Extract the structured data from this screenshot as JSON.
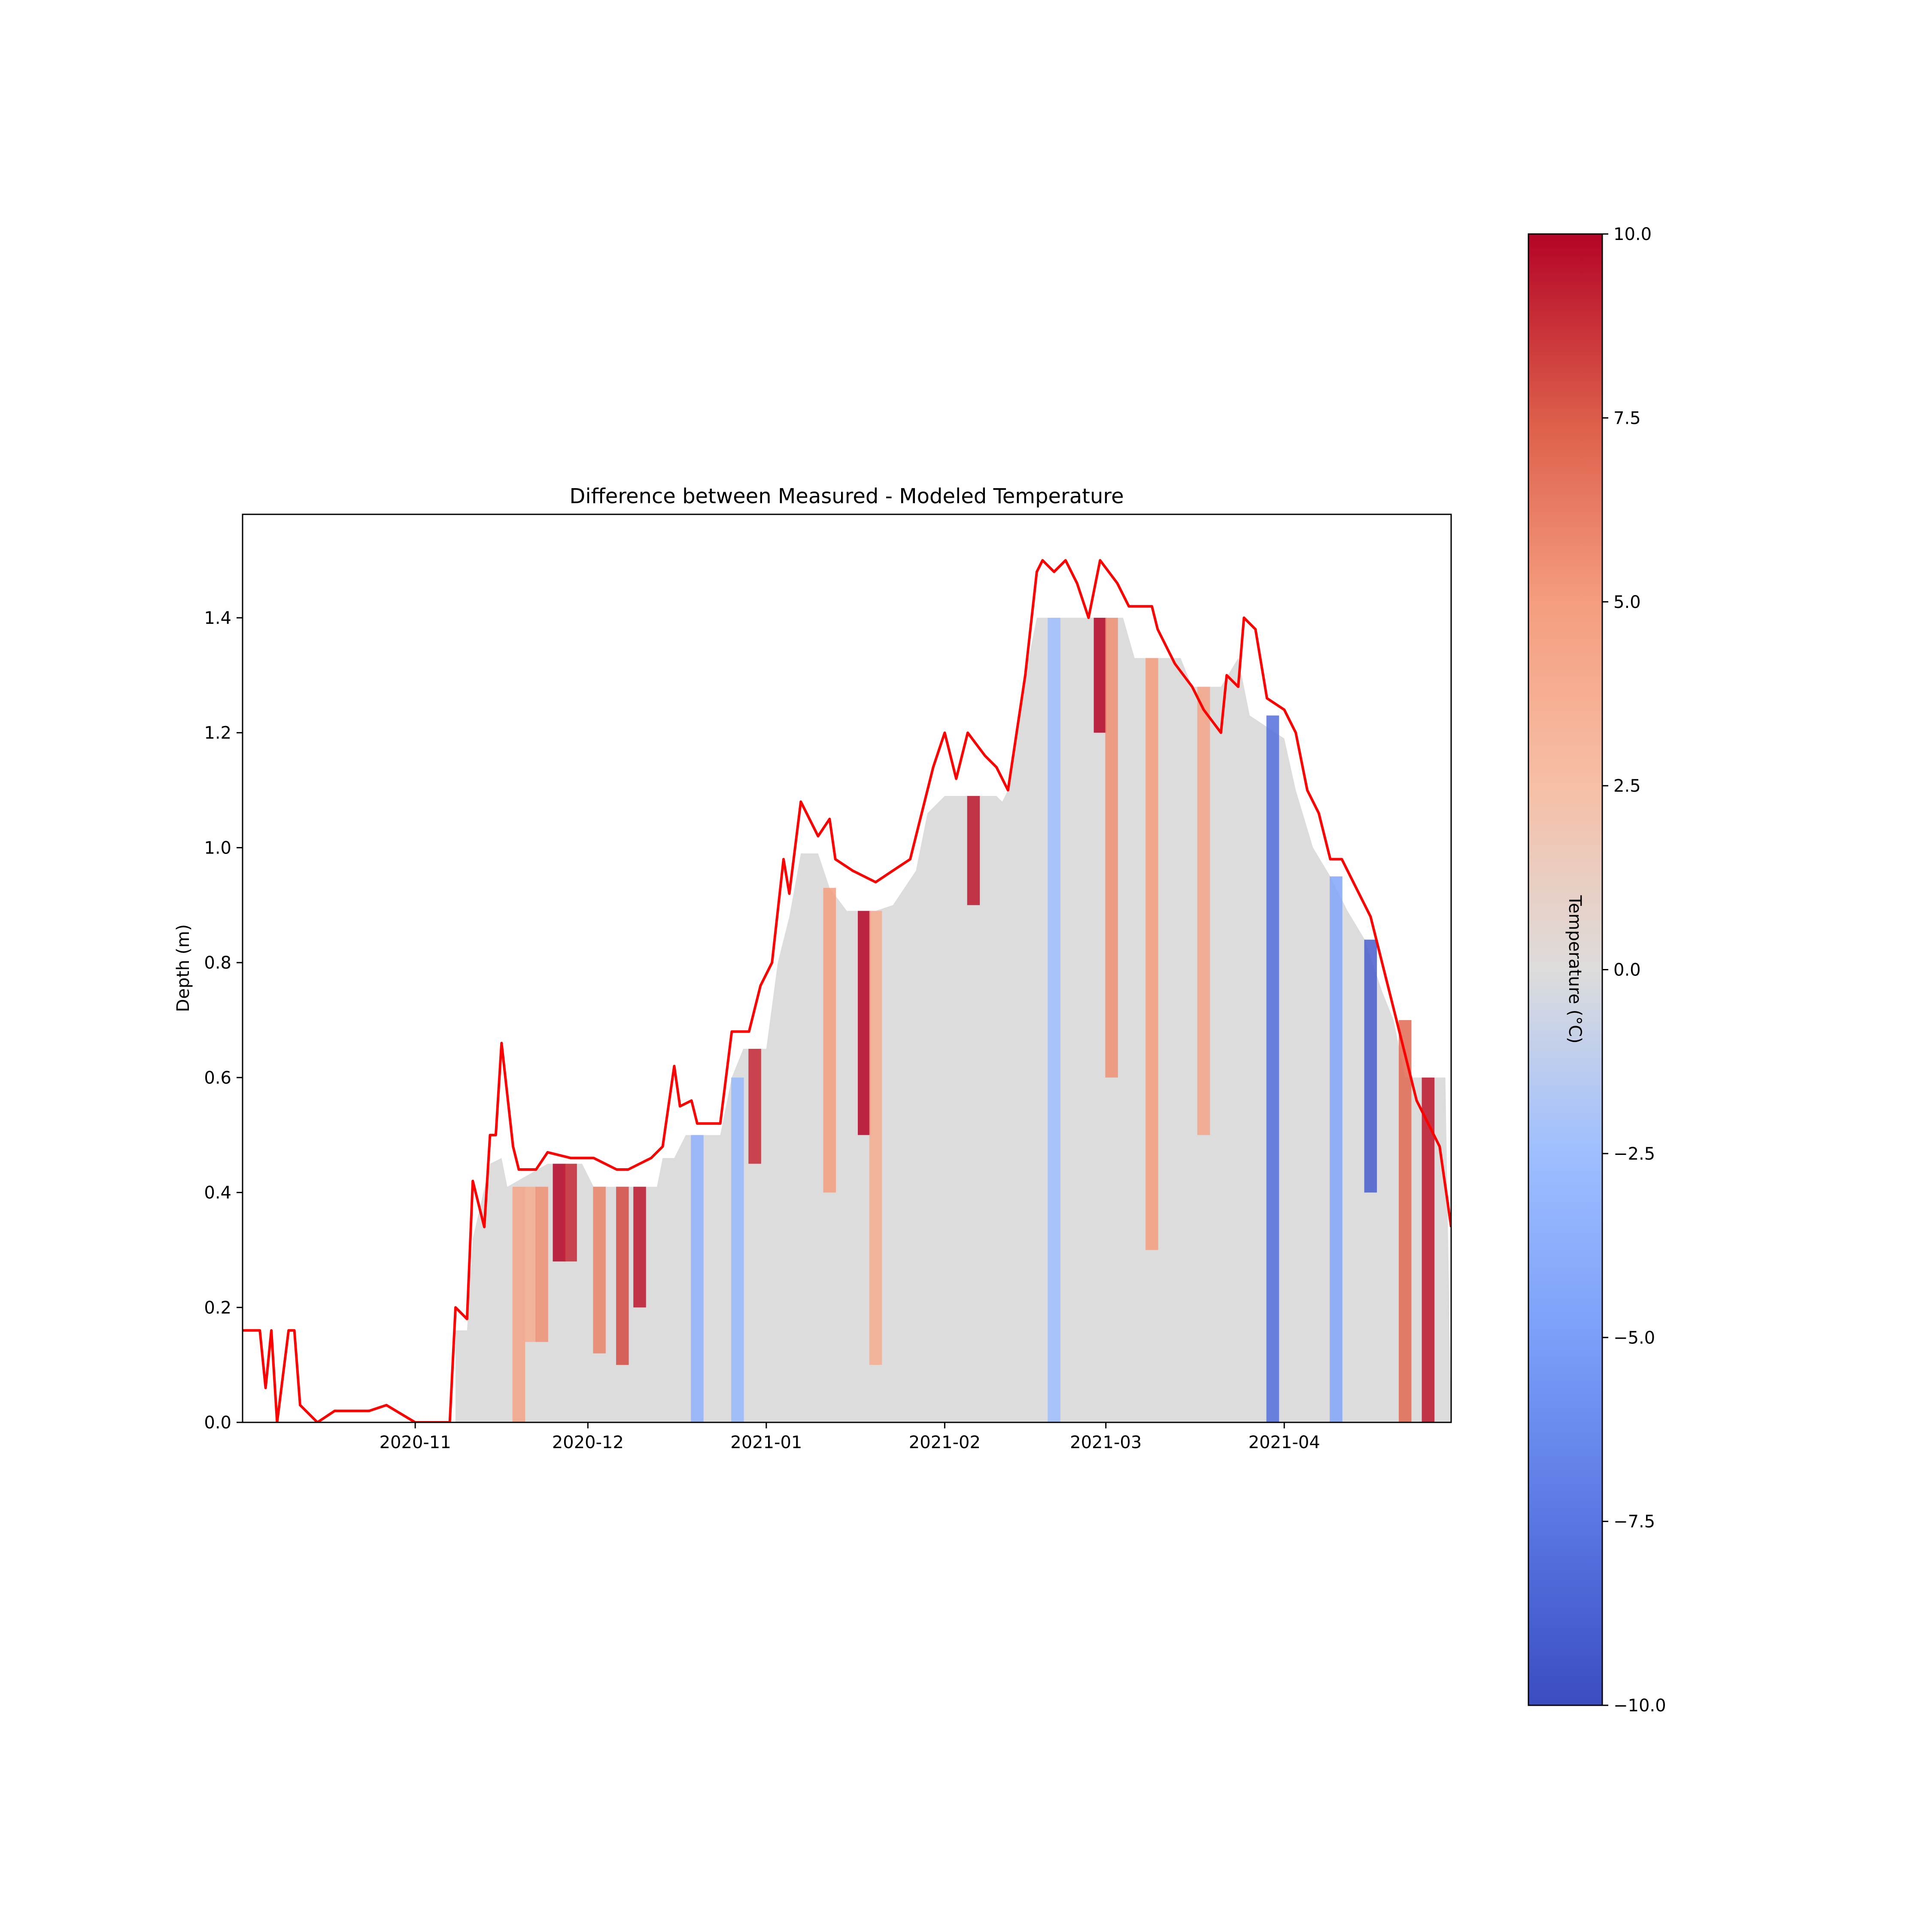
{
  "chart_data": {
    "type": "heatmap",
    "title": "Difference between Measured - Modeled Temperature",
    "xlabel": "",
    "ylabel": "Depth (m)",
    "x_range": [
      "2020-10-02",
      "2021-04-30"
    ],
    "ylim": [
      0,
      1.58
    ],
    "x_ticks": [
      "2020-11",
      "2020-12",
      "2021-01",
      "2021-02",
      "2021-03",
      "2021-04"
    ],
    "x_tick_dates": [
      "2020-11-01",
      "2020-12-01",
      "2021-01-01",
      "2021-02-01",
      "2021-03-01",
      "2021-04-01"
    ],
    "y_ticks": [
      "0.0",
      "0.2",
      "0.4",
      "0.6",
      "0.8",
      "1.0",
      "1.2",
      "1.4"
    ],
    "y_tick_values": [
      0,
      0.2,
      0.4,
      0.6,
      0.8,
      1.0,
      1.2,
      1.4
    ],
    "grid": false,
    "colormap": "coolwarm",
    "colorbar": {
      "label": "Temperature (°C)",
      "vmin": -10,
      "vmax": 10,
      "ticks": [
        "−10.0",
        "−7.5",
        "−5.0",
        "−2.5",
        "0.0",
        "2.5",
        "5.0",
        "7.5",
        "10.0"
      ],
      "tick_values": [
        -10,
        -7.5,
        -5,
        -2.5,
        0,
        2.5,
        5,
        7.5,
        10
      ]
    },
    "line_series": {
      "color": "#ff0000",
      "points": [
        [
          "2020-10-02",
          0.16
        ],
        [
          "2020-10-05",
          0.16
        ],
        [
          "2020-10-06",
          0.06
        ],
        [
          "2020-10-07",
          0.16
        ],
        [
          "2020-10-08",
          0.0
        ],
        [
          "2020-10-10",
          0.16
        ],
        [
          "2020-10-10",
          0.16
        ],
        [
          "2020-10-11",
          0.16
        ],
        [
          "2020-10-12",
          0.03
        ],
        [
          "2020-10-15",
          0.0
        ],
        [
          "2020-10-18",
          0.02
        ],
        [
          "2020-10-24",
          0.02
        ],
        [
          "2020-10-27",
          0.03
        ],
        [
          "2020-11-01",
          0.0
        ],
        [
          "2020-11-07",
          0.0
        ],
        [
          "2020-11-08",
          0.2
        ],
        [
          "2020-11-10",
          0.18
        ],
        [
          "2020-11-11",
          0.42
        ],
        [
          "2020-11-13",
          0.34
        ],
        [
          "2020-11-14",
          0.5
        ],
        [
          "2020-11-15",
          0.5
        ],
        [
          "2020-11-16",
          0.66
        ],
        [
          "2020-11-18",
          0.48
        ],
        [
          "2020-11-19",
          0.44
        ],
        [
          "2020-11-22",
          0.44
        ],
        [
          "2020-11-24",
          0.47
        ],
        [
          "2020-11-28",
          0.46
        ],
        [
          "2020-12-02",
          0.46
        ],
        [
          "2020-12-06",
          0.44
        ],
        [
          "2020-12-08",
          0.44
        ],
        [
          "2020-12-12",
          0.46
        ],
        [
          "2020-12-14",
          0.48
        ],
        [
          "2020-12-16",
          0.62
        ],
        [
          "2020-12-17",
          0.55
        ],
        [
          "2020-12-19",
          0.56
        ],
        [
          "2020-12-20",
          0.52
        ],
        [
          "2020-12-24",
          0.52
        ],
        [
          "2020-12-26",
          0.68
        ],
        [
          "2020-12-29",
          0.68
        ],
        [
          "2020-12-31",
          0.76
        ],
        [
          "2021-01-02",
          0.8
        ],
        [
          "2021-01-04",
          0.98
        ],
        [
          "2021-01-05",
          0.92
        ],
        [
          "2021-01-07",
          1.08
        ],
        [
          "2021-01-10",
          1.02
        ],
        [
          "2021-01-12",
          1.05
        ],
        [
          "2021-01-13",
          0.98
        ],
        [
          "2021-01-16",
          0.96
        ],
        [
          "2021-01-20",
          0.94
        ],
        [
          "2021-01-23",
          0.96
        ],
        [
          "2021-01-26",
          0.98
        ],
        [
          "2021-01-28",
          1.06
        ],
        [
          "2021-01-30",
          1.14
        ],
        [
          "2021-02-01",
          1.2
        ],
        [
          "2021-02-03",
          1.12
        ],
        [
          "2021-02-05",
          1.2
        ],
        [
          "2021-02-08",
          1.16
        ],
        [
          "2021-02-10",
          1.14
        ],
        [
          "2021-02-12",
          1.1
        ],
        [
          "2021-02-15",
          1.3
        ],
        [
          "2021-02-17",
          1.48
        ],
        [
          "2021-02-18",
          1.5
        ],
        [
          "2021-02-20",
          1.48
        ],
        [
          "2021-02-22",
          1.5
        ],
        [
          "2021-02-24",
          1.46
        ],
        [
          "2021-02-26",
          1.4
        ],
        [
          "2021-02-28",
          1.5
        ],
        [
          "2021-03-03",
          1.46
        ],
        [
          "2021-03-05",
          1.42
        ],
        [
          "2021-03-09",
          1.42
        ],
        [
          "2021-03-10",
          1.38
        ],
        [
          "2021-03-13",
          1.32
        ],
        [
          "2021-03-16",
          1.28
        ],
        [
          "2021-03-18",
          1.24
        ],
        [
          "2021-03-21",
          1.2
        ],
        [
          "2021-03-22",
          1.3
        ],
        [
          "2021-03-24",
          1.28
        ],
        [
          "2021-03-25",
          1.4
        ],
        [
          "2021-03-27",
          1.38
        ],
        [
          "2021-03-29",
          1.26
        ],
        [
          "2021-04-01",
          1.24
        ],
        [
          "2021-04-03",
          1.2
        ],
        [
          "2021-04-05",
          1.1
        ],
        [
          "2021-04-07",
          1.06
        ],
        [
          "2021-04-09",
          0.98
        ],
        [
          "2021-04-11",
          0.98
        ],
        [
          "2021-04-14",
          0.92
        ],
        [
          "2021-04-16",
          0.88
        ],
        [
          "2021-04-18",
          0.8
        ],
        [
          "2021-04-20",
          0.72
        ],
        [
          "2021-04-22",
          0.64
        ],
        [
          "2021-04-24",
          0.56
        ],
        [
          "2021-04-26",
          0.52
        ],
        [
          "2021-04-28",
          0.48
        ],
        [
          "2021-04-30",
          0.34
        ]
      ]
    },
    "surface": [
      [
        "2020-11-08",
        0.16
      ],
      [
        "2020-11-10",
        0.16
      ],
      [
        "2020-11-11",
        0.32
      ],
      [
        "2020-11-14",
        0.45
      ],
      [
        "2020-11-16",
        0.46
      ],
      [
        "2020-11-17",
        0.41
      ],
      [
        "2020-11-24",
        0.45
      ],
      [
        "2020-11-30",
        0.45
      ],
      [
        "2020-12-02",
        0.41
      ],
      [
        "2020-12-13",
        0.41
      ],
      [
        "2020-12-14",
        0.46
      ],
      [
        "2020-12-16",
        0.46
      ],
      [
        "2020-12-18",
        0.5
      ],
      [
        "2020-12-22",
        0.5
      ],
      [
        "2020-12-24",
        0.5
      ],
      [
        "2020-12-26",
        0.6
      ],
      [
        "2020-12-28",
        0.65
      ],
      [
        "2021-01-01",
        0.65
      ],
      [
        "2021-01-03",
        0.8
      ],
      [
        "2021-01-05",
        0.88
      ],
      [
        "2021-01-07",
        0.99
      ],
      [
        "2021-01-10",
        0.99
      ],
      [
        "2021-01-12",
        0.93
      ],
      [
        "2021-01-15",
        0.89
      ],
      [
        "2021-01-20",
        0.89
      ],
      [
        "2021-01-23",
        0.9
      ],
      [
        "2021-01-27",
        0.96
      ],
      [
        "2021-01-29",
        1.06
      ],
      [
        "2021-02-01",
        1.09
      ],
      [
        "2021-02-10",
        1.09
      ],
      [
        "2021-02-11",
        1.08
      ],
      [
        "2021-02-12",
        1.1
      ],
      [
        "2021-02-15",
        1.3
      ],
      [
        "2021-02-17",
        1.4
      ],
      [
        "2021-03-04",
        1.4
      ],
      [
        "2021-03-06",
        1.33
      ],
      [
        "2021-03-14",
        1.33
      ],
      [
        "2021-03-16",
        1.28
      ],
      [
        "2021-03-21",
        1.28
      ],
      [
        "2021-03-24",
        1.33
      ],
      [
        "2021-03-26",
        1.23
      ],
      [
        "2021-04-01",
        1.19
      ],
      [
        "2021-04-03",
        1.1
      ],
      [
        "2021-04-06",
        1.0
      ],
      [
        "2021-04-09",
        0.95
      ],
      [
        "2021-04-12",
        0.89
      ],
      [
        "2021-04-15",
        0.84
      ],
      [
        "2021-04-18",
        0.75
      ],
      [
        "2021-04-20",
        0.7
      ],
      [
        "2021-04-22",
        0.6
      ],
      [
        "2021-04-25",
        0.6
      ],
      [
        "2021-04-29",
        0.6
      ],
      [
        "2021-04-30",
        0.0
      ]
    ],
    "anomalies": [
      {
        "date": "2020-11-19",
        "depth": [
          0.0,
          0.41
        ],
        "value": 4.5
      },
      {
        "date": "2020-11-21",
        "depth": [
          0.14,
          0.41
        ],
        "value": 4.0
      },
      {
        "date": "2020-11-23",
        "depth": [
          0.14,
          0.41
        ],
        "value": 5.5
      },
      {
        "date": "2020-11-26",
        "depth": [
          0.28,
          0.45
        ],
        "value": 10.0
      },
      {
        "date": "2020-11-28",
        "depth": [
          0.28,
          0.45
        ],
        "value": 9.0
      },
      {
        "date": "2020-12-03",
        "depth": [
          0.12,
          0.41
        ],
        "value": 6.0
      },
      {
        "date": "2020-12-07",
        "depth": [
          0.1,
          0.41
        ],
        "value": 8.0
      },
      {
        "date": "2020-12-10",
        "depth": [
          0.2,
          0.41
        ],
        "value": 9.5
      },
      {
        "date": "2020-12-20",
        "depth": [
          0.0,
          0.5
        ],
        "value": -3.5
      },
      {
        "date": "2020-12-27",
        "depth": [
          0.0,
          0.6
        ],
        "value": -3.0
      },
      {
        "date": "2020-12-30",
        "depth": [
          0.45,
          0.65
        ],
        "value": 9.0
      },
      {
        "date": "2021-01-12",
        "depth": [
          0.4,
          0.93
        ],
        "value": 5.0
      },
      {
        "date": "2021-01-18",
        "depth": [
          0.5,
          0.89
        ],
        "value": 10.0
      },
      {
        "date": "2021-01-20",
        "depth": [
          0.1,
          0.89
        ],
        "value": 4.0
      },
      {
        "date": "2021-02-06",
        "depth": [
          0.9,
          1.09
        ],
        "value": 9.5
      },
      {
        "date": "2021-02-20",
        "depth": [
          0.0,
          1.4
        ],
        "value": -2.5
      },
      {
        "date": "2021-02-28",
        "depth": [
          1.2,
          1.4
        ],
        "value": 10.0
      },
      {
        "date": "2021-03-02",
        "depth": [
          0.6,
          1.4
        ],
        "value": 5.5
      },
      {
        "date": "2021-03-09",
        "depth": [
          0.3,
          1.33
        ],
        "value": 5.0
      },
      {
        "date": "2021-03-18",
        "depth": [
          0.5,
          1.28
        ],
        "value": 4.5
      },
      {
        "date": "2021-03-30",
        "depth": [
          0.0,
          1.23
        ],
        "value": -8.0
      },
      {
        "date": "2021-04-10",
        "depth": [
          0.0,
          0.95
        ],
        "value": -4.5
      },
      {
        "date": "2021-04-16",
        "depth": [
          0.4,
          0.84
        ],
        "value": -9.0
      },
      {
        "date": "2021-04-22",
        "depth": [
          0.0,
          0.7
        ],
        "value": 7.0
      },
      {
        "date": "2021-04-26",
        "depth": [
          0.0,
          0.6
        ],
        "value": 9.5
      }
    ]
  }
}
